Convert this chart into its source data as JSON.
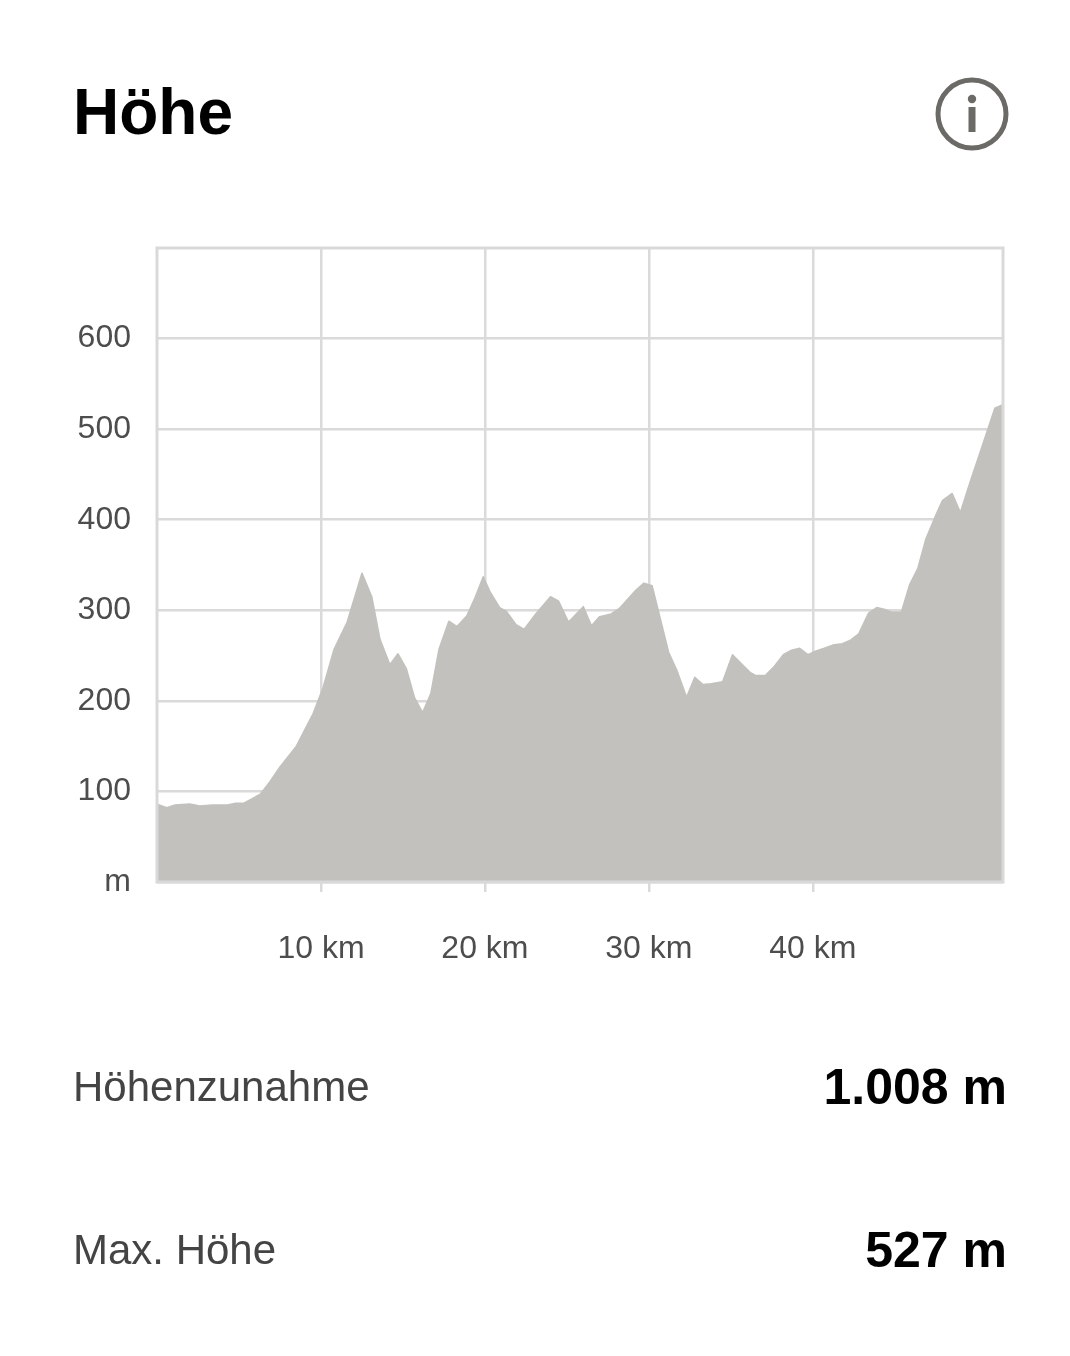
{
  "chart_data": {
    "type": "area",
    "title": "Höhe",
    "color": "#c2c1bd",
    "marker": "none",
    "legend": false,
    "grid": true,
    "x": [
      0,
      0.6,
      1.1,
      2.0,
      2.6,
      3.4,
      4.3,
      4.8,
      5.3,
      6.3,
      6.9,
      7.5,
      8.5,
      9.5,
      10.1,
      10.8,
      11.6,
      12.5,
      13.1,
      13.6,
      14.2,
      14.7,
      15.2,
      15.7,
      16.2,
      16.7,
      17.2,
      17.8,
      18.3,
      18.9,
      19.4,
      19.9,
      20.3,
      20.9,
      21.3,
      21.9,
      22.4,
      23.1,
      24.0,
      24.5,
      25.1,
      26.0,
      26.5,
      27.0,
      27.7,
      28.2,
      29.2,
      29.7,
      30.2,
      30.6,
      31.2,
      31.7,
      32.3,
      32.8,
      33.3,
      33.8,
      34.5,
      35.1,
      36.2,
      36.5,
      37.1,
      37.6,
      38.2,
      38.7,
      39.2,
      39.7,
      40.2,
      40.7,
      41.3,
      41.8,
      42.3,
      42.8,
      43.4,
      43.9,
      44.4,
      44.8,
      45.4,
      45.9,
      46.4,
      46.9,
      47.5,
      47.9,
      48.5,
      49.0,
      49.6,
      50.4,
      51.1,
      51.6
    ],
    "values": [
      86,
      82,
      85,
      86,
      84,
      85,
      85,
      87,
      87,
      97,
      111,
      127,
      150,
      185,
      213,
      257,
      287,
      341,
      315,
      268,
      240,
      252,
      236,
      204,
      187,
      208,
      257,
      288,
      282,
      294,
      314,
      337,
      321,
      303,
      299,
      284,
      279,
      296,
      315,
      310,
      287,
      304,
      283,
      293,
      296,
      302,
      322,
      330,
      327,
      298,
      254,
      234,
      204,
      226,
      218,
      219,
      221,
      251,
      231,
      228,
      228,
      237,
      251,
      256,
      258,
      251,
      255,
      258,
      262,
      263,
      267,
      274,
      297,
      303,
      301,
      298,
      298,
      328,
      346,
      379,
      405,
      421,
      429,
      408,
      442,
      485,
      523,
      527
    ],
    "xlim": [
      0,
      51.6
    ],
    "xticks": [
      {
        "value": 10,
        "label": "10 km"
      },
      {
        "value": 20,
        "label": "20 km"
      },
      {
        "value": 30,
        "label": "30 km"
      },
      {
        "value": 40,
        "label": "40 km"
      }
    ],
    "ylim": [
      0,
      700
    ],
    "yticks": [
      {
        "value": 0,
        "label": "m"
      },
      100,
      200,
      300,
      400,
      500,
      600
    ],
    "annotations": [
      "Höhenzunahme",
      "1.008 m",
      "Max. Höhe",
      "527 m"
    ]
  }
}
